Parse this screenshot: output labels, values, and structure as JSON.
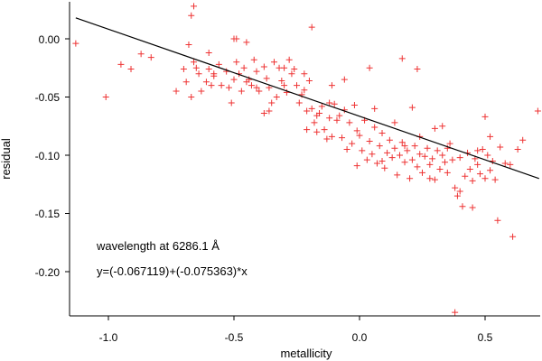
{
  "chart_data": {
    "type": "scatter",
    "xlabel": "metallicity",
    "ylabel": "residual",
    "xlim": [
      -1.15,
      0.72
    ],
    "ylim": [
      -0.24,
      0.03
    ],
    "xticks": [
      -1.0,
      -0.5,
      0.0,
      0.5
    ],
    "xtick_labels": [
      "-1.0",
      "-0.5",
      "0.0",
      "0.5"
    ],
    "yticks": [
      0.0,
      -0.05,
      -0.1,
      -0.15,
      -0.2
    ],
    "ytick_labels": [
      "0.00",
      "-0.05",
      "-0.10",
      "-0.15",
      "-0.20"
    ],
    "annotations": [
      "wavelength at 6286.1 Å",
      "y=(-0.067119)+(-0.075363)*x"
    ],
    "fit": {
      "intercept": -0.067119,
      "slope": -0.075363
    },
    "point_color": "#ee3333",
    "line_color": "#000000",
    "points": [
      [
        -1.13,
        -0.004
      ],
      [
        -1.01,
        -0.05
      ],
      [
        -0.95,
        -0.022
      ],
      [
        -0.91,
        -0.026
      ],
      [
        -0.87,
        -0.013
      ],
      [
        -0.83,
        -0.016
      ],
      [
        -0.73,
        -0.045
      ],
      [
        -0.7,
        -0.026
      ],
      [
        -0.69,
        -0.037
      ],
      [
        -0.68,
        -0.005
      ],
      [
        -0.67,
        0.02
      ],
      [
        -0.66,
        0.028
      ],
      [
        -0.67,
        -0.05
      ],
      [
        -0.66,
        -0.02
      ],
      [
        -0.65,
        -0.025
      ],
      [
        -0.64,
        -0.03
      ],
      [
        -0.63,
        -0.045
      ],
      [
        -0.61,
        -0.037
      ],
      [
        -0.6,
        -0.026
      ],
      [
        -0.59,
        -0.04
      ],
      [
        -0.58,
        -0.03
      ],
      [
        -0.56,
        -0.022
      ],
      [
        -0.55,
        -0.04
      ],
      [
        -0.53,
        -0.028
      ],
      [
        -0.52,
        -0.042
      ],
      [
        -0.51,
        -0.055
      ],
      [
        -0.5,
        -0.035
      ],
      [
        -0.5,
        0.0
      ],
      [
        -0.49,
        -0.02
      ],
      [
        -0.48,
        -0.03
      ],
      [
        -0.47,
        -0.045
      ],
      [
        -0.46,
        -0.025
      ],
      [
        -0.45,
        -0.003
      ],
      [
        -0.44,
        -0.035
      ],
      [
        -0.43,
        -0.04
      ],
      [
        -0.42,
        -0.018
      ],
      [
        -0.41,
        -0.028
      ],
      [
        -0.4,
        -0.045
      ],
      [
        -0.38,
        -0.024
      ],
      [
        -0.37,
        -0.034
      ],
      [
        -0.36,
        -0.042
      ],
      [
        -0.34,
        -0.02
      ],
      [
        -0.33,
        -0.05
      ],
      [
        -0.32,
        -0.025
      ],
      [
        -0.31,
        -0.036
      ],
      [
        -0.3,
        -0.04
      ],
      [
        -0.29,
        -0.046
      ],
      [
        -0.28,
        -0.018
      ],
      [
        -0.27,
        -0.03
      ],
      [
        -0.26,
        -0.026
      ],
      [
        -0.25,
        -0.04
      ],
      [
        -0.24,
        -0.055
      ],
      [
        -0.23,
        -0.048
      ],
      [
        -0.22,
        -0.044
      ],
      [
        -0.21,
        -0.062
      ],
      [
        -0.2,
        -0.036
      ],
      [
        -0.19,
        -0.06
      ],
      [
        -0.18,
        -0.072
      ],
      [
        -0.17,
        -0.08
      ],
      [
        -0.16,
        -0.064
      ],
      [
        -0.15,
        -0.058
      ],
      [
        -0.14,
        -0.078
      ],
      [
        -0.13,
        -0.086
      ],
      [
        -0.12,
        -0.068
      ],
      [
        -0.11,
        -0.04
      ],
      [
        -0.1,
        -0.056
      ],
      [
        -0.09,
        -0.07
      ],
      [
        -0.08,
        -0.066
      ],
      [
        -0.07,
        -0.085
      ],
      [
        -0.06,
        -0.061
      ],
      [
        -0.05,
        -0.095
      ],
      [
        -0.04,
        -0.072
      ],
      [
        -0.03,
        -0.09
      ],
      [
        -0.02,
        -0.057
      ],
      [
        -0.01,
        -0.079
      ],
      [
        0.0,
        -0.083
      ],
      [
        0.01,
        -0.096
      ],
      [
        0.02,
        -0.07
      ],
      [
        0.03,
        -0.104
      ],
      [
        0.04,
        -0.088
      ],
      [
        0.05,
        -0.099
      ],
      [
        0.06,
        -0.076
      ],
      [
        0.07,
        -0.107
      ],
      [
        0.08,
        -0.092
      ],
      [
        0.09,
        -0.081
      ],
      [
        0.1,
        -0.111
      ],
      [
        0.11,
        -0.098
      ],
      [
        0.12,
        -0.087
      ],
      [
        0.13,
        -0.102
      ],
      [
        0.14,
        -0.094
      ],
      [
        0.15,
        -0.117
      ],
      [
        0.16,
        -0.1
      ],
      [
        0.17,
        -0.089
      ],
      [
        0.18,
        -0.106
      ],
      [
        0.19,
        -0.096
      ],
      [
        0.2,
        -0.12
      ],
      [
        0.21,
        -0.104
      ],
      [
        0.22,
        -0.092
      ],
      [
        0.23,
        -0.11
      ],
      [
        0.24,
        -0.099
      ],
      [
        0.25,
        -0.115
      ],
      [
        0.26,
        -0.101
      ],
      [
        0.27,
        -0.094
      ],
      [
        0.28,
        -0.108
      ],
      [
        0.29,
        -0.103
      ],
      [
        0.3,
        -0.121
      ],
      [
        0.31,
        -0.096
      ],
      [
        0.32,
        -0.112
      ],
      [
        0.33,
        -0.1
      ],
      [
        0.34,
        -0.106
      ],
      [
        0.35,
        -0.115
      ],
      [
        0.36,
        -0.09
      ],
      [
        0.37,
        -0.104
      ],
      [
        0.38,
        -0.128
      ],
      [
        0.39,
        -0.135
      ],
      [
        0.4,
        -0.102
      ],
      [
        0.41,
        -0.144
      ],
      [
        0.42,
        -0.118
      ],
      [
        0.43,
        -0.098
      ],
      [
        0.44,
        -0.112
      ],
      [
        0.45,
        -0.122
      ],
      [
        0.46,
        -0.103
      ],
      [
        0.47,
        -0.108
      ],
      [
        0.48,
        -0.116
      ],
      [
        0.49,
        -0.095
      ],
      [
        0.5,
        -0.12
      ],
      [
        0.51,
        -0.1
      ],
      [
        0.52,
        -0.113
      ],
      [
        0.53,
        -0.105
      ],
      [
        0.54,
        -0.121
      ],
      [
        0.55,
        -0.156
      ],
      [
        0.56,
        -0.093
      ],
      [
        0.58,
        -0.107
      ],
      [
        0.6,
        -0.108
      ],
      [
        0.61,
        -0.17
      ],
      [
        0.63,
        -0.095
      ],
      [
        0.65,
        -0.087
      ],
      [
        0.71,
        -0.062
      ],
      [
        -0.6,
        -0.012
      ],
      [
        -0.49,
        0.0
      ],
      [
        -0.41,
        -0.042
      ],
      [
        -0.3,
        -0.025
      ],
      [
        -0.35,
        -0.055
      ],
      [
        -0.21,
        -0.078
      ],
      [
        -0.19,
        0.01
      ],
      [
        -0.17,
        -0.066
      ],
      [
        -0.12,
        -0.055
      ],
      [
        0.04,
        -0.025
      ],
      [
        0.17,
        -0.017
      ],
      [
        0.23,
        -0.026
      ],
      [
        0.38,
        -0.235
      ],
      [
        0.45,
        -0.145
      ],
      [
        0.5,
        -0.067
      ],
      [
        0.4,
        -0.131
      ],
      [
        0.3,
        -0.077
      ],
      [
        0.24,
        -0.084
      ],
      [
        0.14,
        -0.072
      ],
      [
        0.06,
        -0.06
      ],
      [
        -0.06,
        -0.035
      ],
      [
        -0.11,
        -0.084
      ],
      [
        -0.22,
        -0.03
      ],
      [
        -0.38,
        -0.064
      ],
      [
        -0.36,
        -0.062
      ],
      [
        -0.45,
        -0.037
      ],
      [
        -0.58,
        -0.032
      ],
      [
        0.33,
        -0.075
      ],
      [
        0.21,
        -0.059
      ],
      [
        0.09,
        -0.105
      ],
      [
        -0.01,
        -0.109
      ],
      [
        0.18,
        -0.092
      ],
      [
        0.28,
        -0.12
      ],
      [
        0.35,
        -0.094
      ],
      [
        0.47,
        -0.096
      ],
      [
        0.52,
        -0.084
      ]
    ]
  }
}
